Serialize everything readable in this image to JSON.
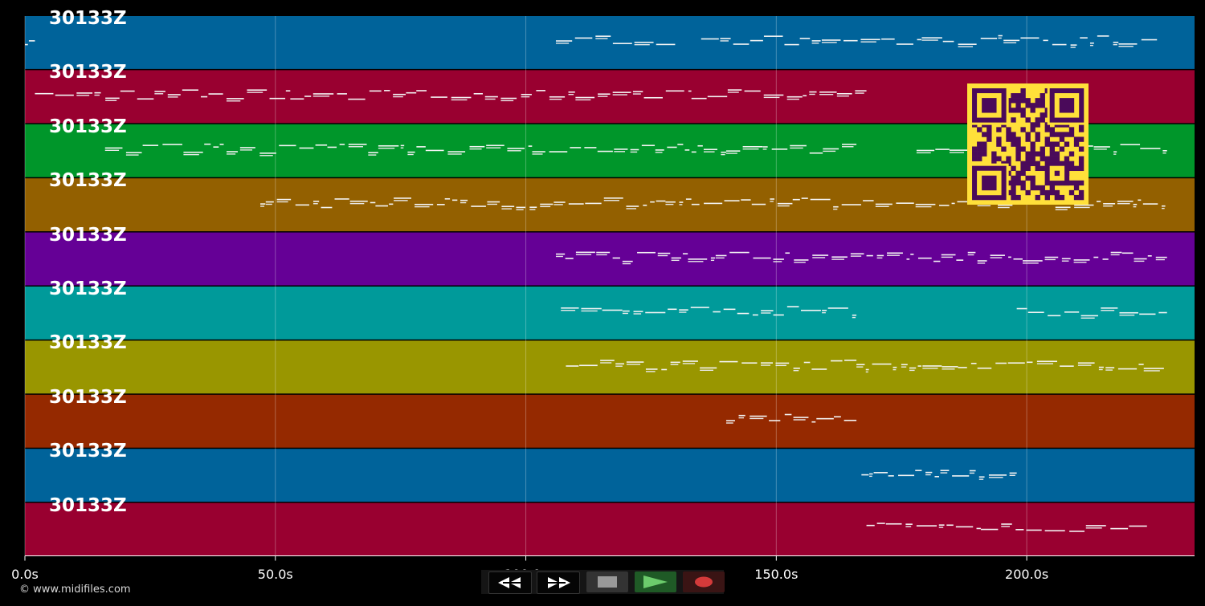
{
  "track": {
    "labels": [
      "30133Z",
      "30133Z",
      "30133Z",
      "30133Z",
      "30133Z",
      "30133Z",
      "30133Z",
      "30133Z",
      "30133Z",
      "30133Z"
    ],
    "colors": [
      "#00639a",
      "#990030",
      "#00962a",
      "#936000",
      "#650096",
      "#009a9a",
      "#999600",
      "#952900",
      "#00639a",
      "#990030"
    ],
    "note_ranges": [
      [
        [
          0,
          2
        ],
        [
          106,
          130
        ],
        [
          135,
          226
        ]
      ],
      [
        [
          2,
          168
        ]
      ],
      [
        [
          16,
          80
        ],
        [
          80,
          140
        ],
        [
          140,
          166
        ],
        [
          178,
          228
        ]
      ],
      [
        [
          47,
          228
        ]
      ],
      [
        [
          106,
          168
        ],
        [
          168,
          228
        ]
      ],
      [
        [
          107,
          166
        ],
        [
          198,
          228
        ]
      ],
      [
        [
          108,
          166
        ],
        [
          166,
          228
        ]
      ],
      [
        [
          140,
          166
        ]
      ],
      [
        [
          167,
          198
        ]
      ],
      [
        [
          168,
          224
        ]
      ]
    ]
  },
  "axis": {
    "ticks": [
      "0.0s",
      "50.0s",
      "100.0s",
      "150.0s",
      "200.0s"
    ],
    "tick_values": [
      0,
      50,
      100,
      150,
      200
    ],
    "max": 233.5
  },
  "footer": {
    "copyright": "© www.midifiles.com"
  },
  "transport": {
    "rewind_icon": "rewind-icon",
    "forward_icon": "fast-forward-icon",
    "stop_icon": "stop-icon",
    "play_icon": "play-icon",
    "record_icon": "record-icon"
  },
  "qr": {
    "icon": "qr-code-icon"
  }
}
